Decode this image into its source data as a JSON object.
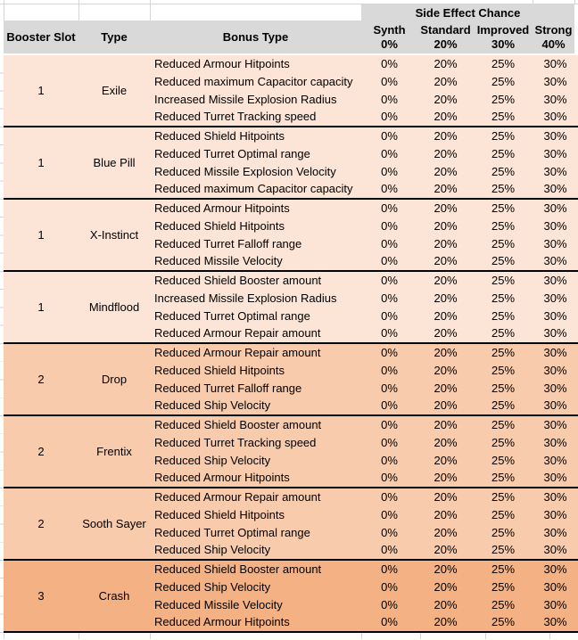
{
  "header": {
    "side_effect_chance": "Side Effect Chance",
    "columns": [
      "Booster Slot",
      "Type",
      "Bonus Type"
    ],
    "effect_columns": [
      {
        "name": "Synth",
        "pct": "0%"
      },
      {
        "name": "Standard",
        "pct": "20%"
      },
      {
        "name": "Improved",
        "pct": "30%"
      },
      {
        "name": "Strong",
        "pct": "40%"
      }
    ]
  },
  "groups": [
    {
      "slot": "1",
      "type": "Exile",
      "fill": "#FCE4D6",
      "rows": [
        {
          "bonus": "Reduced Armour Hitpoints",
          "values": [
            "0%",
            "20%",
            "25%",
            "30%"
          ]
        },
        {
          "bonus": "Reduced maximum Capacitor capacity",
          "values": [
            "0%",
            "20%",
            "25%",
            "30%"
          ]
        },
        {
          "bonus": "Increased Missile Explosion Radius",
          "values": [
            "0%",
            "20%",
            "25%",
            "30%"
          ]
        },
        {
          "bonus": "Reduced Turret Tracking speed",
          "values": [
            "0%",
            "20%",
            "25%",
            "30%"
          ]
        }
      ]
    },
    {
      "slot": "1",
      "type": "Blue Pill",
      "fill": "#FCE4D6",
      "rows": [
        {
          "bonus": "Reduced Shield Hitpoints",
          "values": [
            "0%",
            "20%",
            "25%",
            "30%"
          ]
        },
        {
          "bonus": "Reduced Turret Optimal range",
          "values": [
            "0%",
            "20%",
            "25%",
            "30%"
          ]
        },
        {
          "bonus": "Reduced Missile Explosion Velocity",
          "values": [
            "0%",
            "20%",
            "25%",
            "30%"
          ]
        },
        {
          "bonus": "Reduced maximum Capacitor capacity",
          "values": [
            "0%",
            "20%",
            "25%",
            "30%"
          ]
        }
      ]
    },
    {
      "slot": "1",
      "type": "X-Instinct",
      "fill": "#FCE4D6",
      "rows": [
        {
          "bonus": "Reduced Armour Hitpoints",
          "values": [
            "0%",
            "20%",
            "25%",
            "30%"
          ]
        },
        {
          "bonus": "Reduced Shield Hitpoints",
          "values": [
            "0%",
            "20%",
            "25%",
            "30%"
          ]
        },
        {
          "bonus": "Reduced Turret Falloff range",
          "values": [
            "0%",
            "20%",
            "25%",
            "30%"
          ]
        },
        {
          "bonus": "Reduced Missile Velocity",
          "values": [
            "0%",
            "20%",
            "25%",
            "30%"
          ]
        }
      ]
    },
    {
      "slot": "1",
      "type": "Mindflood",
      "fill": "#FCE4D6",
      "rows": [
        {
          "bonus": "Reduced Shield Booster amount",
          "values": [
            "0%",
            "20%",
            "25%",
            "30%"
          ]
        },
        {
          "bonus": "Increased Missile Explosion Radius",
          "values": [
            "0%",
            "20%",
            "25%",
            "30%"
          ]
        },
        {
          "bonus": "Reduced Turret Optimal range",
          "values": [
            "0%",
            "20%",
            "25%",
            "30%"
          ]
        },
        {
          "bonus": "Reduced Armour Repair amount",
          "values": [
            "0%",
            "20%",
            "25%",
            "30%"
          ]
        }
      ]
    },
    {
      "slot": "2",
      "type": "Drop",
      "fill": "#F8CBAD",
      "rows": [
        {
          "bonus": "Reduced Armour Repair amount",
          "values": [
            "0%",
            "20%",
            "25%",
            "30%"
          ]
        },
        {
          "bonus": "Reduced Shield Hitpoints",
          "values": [
            "0%",
            "20%",
            "25%",
            "30%"
          ]
        },
        {
          "bonus": "Reduced Turret Falloff range",
          "values": [
            "0%",
            "20%",
            "25%",
            "30%"
          ]
        },
        {
          "bonus": "Reduced Ship Velocity",
          "values": [
            "0%",
            "20%",
            "25%",
            "30%"
          ]
        }
      ]
    },
    {
      "slot": "2",
      "type": "Frentix",
      "fill": "#F8CBAD",
      "rows": [
        {
          "bonus": "Reduced Shield Booster amount",
          "values": [
            "0%",
            "20%",
            "25%",
            "30%"
          ]
        },
        {
          "bonus": "Reduced Turret Tracking speed",
          "values": [
            "0%",
            "20%",
            "25%",
            "30%"
          ]
        },
        {
          "bonus": "Reduced Ship Velocity",
          "values": [
            "0%",
            "20%",
            "25%",
            "30%"
          ]
        },
        {
          "bonus": "Reduced Armour Hitpoints",
          "values": [
            "0%",
            "20%",
            "25%",
            "30%"
          ]
        }
      ]
    },
    {
      "slot": "2",
      "type": "Sooth Sayer",
      "fill": "#F8CBAD",
      "rows": [
        {
          "bonus": "Reduced Armour Repair amount",
          "values": [
            "0%",
            "20%",
            "25%",
            "30%"
          ]
        },
        {
          "bonus": "Reduced Shield Hitpoints",
          "values": [
            "0%",
            "20%",
            "25%",
            "30%"
          ]
        },
        {
          "bonus": "Reduced Turret Optimal range",
          "values": [
            "0%",
            "20%",
            "25%",
            "30%"
          ]
        },
        {
          "bonus": "Reduced Ship Velocity",
          "values": [
            "0%",
            "20%",
            "25%",
            "30%"
          ]
        }
      ]
    },
    {
      "slot": "3",
      "type": "Crash",
      "fill": "#F4B183",
      "rows": [
        {
          "bonus": "Reduced Shield Booster amount",
          "values": [
            "0%",
            "20%",
            "25%",
            "30%"
          ]
        },
        {
          "bonus": "Reduced Ship Velocity",
          "values": [
            "0%",
            "20%",
            "25%",
            "30%"
          ]
        },
        {
          "bonus": "Reduced Missile Velocity",
          "values": [
            "0%",
            "20%",
            "25%",
            "30%"
          ]
        },
        {
          "bonus": "Reduced Armour Hitpoints",
          "values": [
            "0%",
            "20%",
            "25%",
            "30%"
          ]
        }
      ]
    }
  ],
  "colors": {
    "header_fill": "#D9D9D9",
    "slot1_fill": "#FCE4D6",
    "slot2_fill": "#F8CBAD",
    "slot3_fill": "#F4B183",
    "gridline": "#D6D6D6",
    "group_border": "#000000"
  }
}
